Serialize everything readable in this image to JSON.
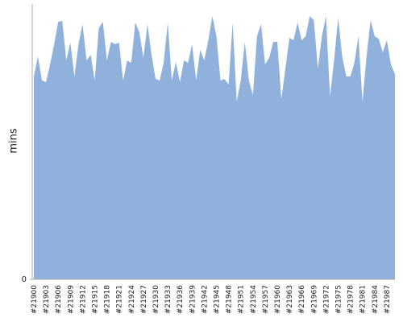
{
  "chart_data": {
    "type": "area",
    "ylabel": "mins",
    "color": "#8fb1dc",
    "categories": [
      "#21900",
      null,
      null,
      "#21903",
      null,
      null,
      "#21906",
      null,
      null,
      "#21909",
      null,
      null,
      "#21912",
      null,
      null,
      "#21915",
      null,
      null,
      "#21918",
      null,
      null,
      "#21921",
      null,
      null,
      "#21924",
      null,
      null,
      "#21927",
      null,
      null,
      "#21930",
      null,
      null,
      "#21933",
      null,
      null,
      "#21936",
      null,
      null,
      "#21939",
      null,
      null,
      "#21942",
      null,
      null,
      "#21945",
      null,
      null,
      "#21948",
      null,
      null,
      "#21951",
      null,
      null,
      "#21954",
      null,
      null,
      "#21957",
      null,
      null,
      "#21960",
      null,
      null,
      "#21963",
      null,
      null,
      "#21966",
      null,
      null,
      "#21969",
      null,
      null,
      "#21972",
      null,
      null,
      "#21975",
      null,
      null,
      "#21978",
      null,
      null,
      "#21981",
      null,
      null,
      "#21984",
      null,
      null,
      "#21987",
      null,
      null
    ],
    "values": [
      252,
      277,
      247,
      245,
      267,
      292,
      320,
      321,
      272,
      294,
      252,
      292,
      317,
      272,
      279,
      247,
      312,
      320,
      272,
      295,
      292,
      294,
      247,
      272,
      269,
      319,
      307,
      275,
      317,
      279,
      249,
      247,
      269,
      319,
      247,
      270,
      245,
      272,
      269,
      292,
      247,
      285,
      272,
      297,
      327,
      302,
      247,
      249,
      242,
      319,
      221,
      247,
      295,
      247,
      229,
      302,
      317,
      267,
      275,
      295,
      295,
      224,
      262,
      300,
      297,
      319,
      297,
      302,
      327,
      322,
      262,
      302,
      327,
      227,
      272,
      325,
      277,
      252,
      252,
      269,
      302,
      220,
      277,
      322,
      302,
      299,
      282,
      297,
      267,
      255
    ],
    "ylim": [
      0,
      342
    ],
    "yticks": [
      0
    ]
  }
}
